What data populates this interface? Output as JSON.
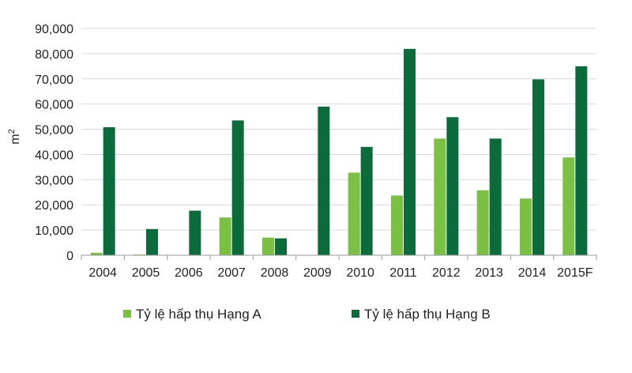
{
  "chart_data": {
    "type": "bar",
    "categories": [
      "2004",
      "2005",
      "2006",
      "2007",
      "2008",
      "2009",
      "2010",
      "2011",
      "2012",
      "2013",
      "2014",
      "2015F"
    ],
    "series": [
      {
        "name": "Tỷ lệ hấp thụ Hạng A",
        "color": "#7ac143",
        "values": [
          1000,
          300,
          0,
          15000,
          7000,
          0,
          32800,
          23700,
          46300,
          25800,
          22500,
          38800
        ]
      },
      {
        "name": "Tỷ lệ hấp thụ Hạng B",
        "color": "#0b6b3a",
        "values": [
          50800,
          10400,
          17700,
          53500,
          6700,
          59000,
          43000,
          81900,
          54800,
          46300,
          69800,
          75000
        ]
      }
    ],
    "ylabel": "m",
    "ylabel_sup": "2",
    "ylim": [
      0,
      90000
    ],
    "yticks": [
      "0",
      "10,000",
      "20,000",
      "30,000",
      "40,000",
      "50,000",
      "60,000",
      "70,000",
      "80,000",
      "90,000"
    ],
    "ytick_values": [
      0,
      10000,
      20000,
      30000,
      40000,
      50000,
      60000,
      70000,
      80000,
      90000
    ],
    "grid": true,
    "legend_position": "bottom"
  }
}
